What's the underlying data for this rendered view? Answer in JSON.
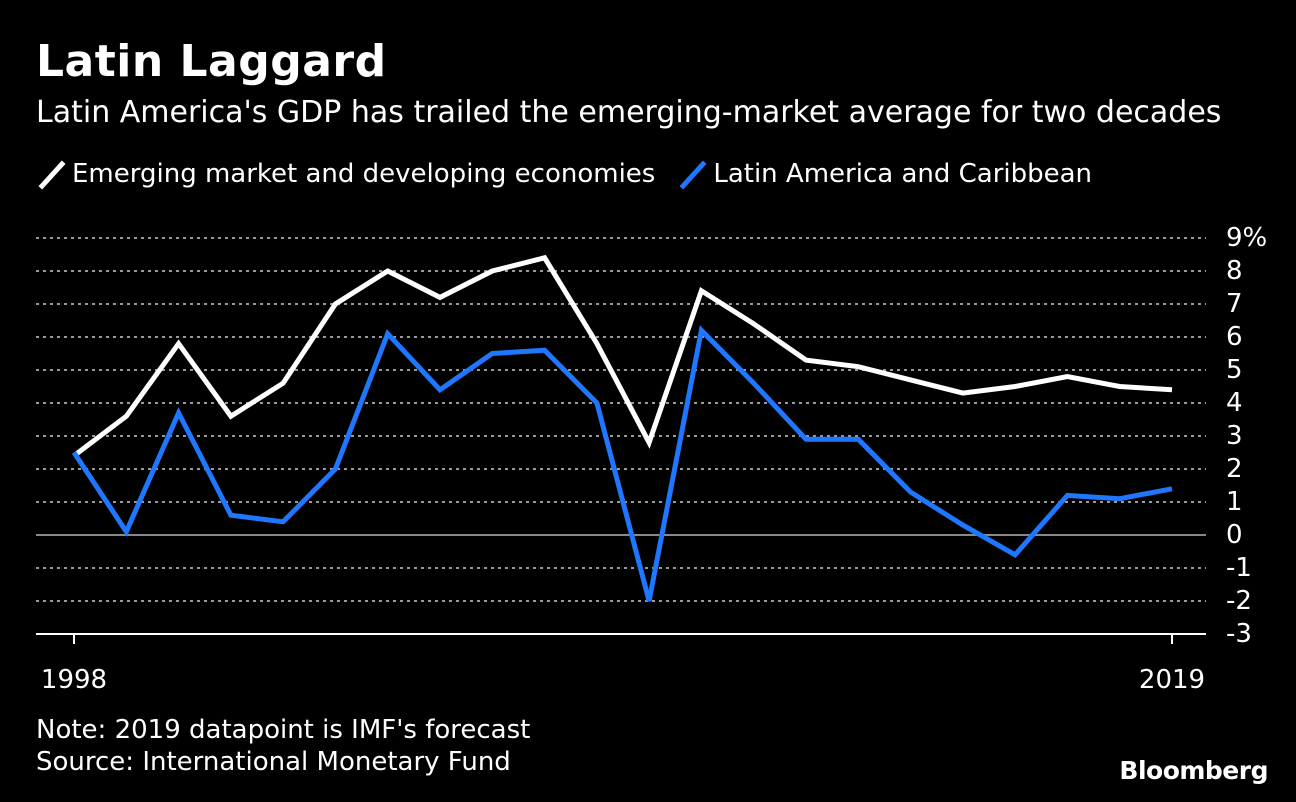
{
  "header": {
    "title": "Latin Laggard",
    "subtitle": "Latin America's GDP has trailed the emerging-market average for two decades"
  },
  "legend": [
    {
      "label": "Emerging market and developing economies",
      "color": "#ffffff"
    },
    {
      "label": "Latin America and Caribbean",
      "color": "#1f77ff"
    }
  ],
  "chart_data": {
    "type": "line",
    "x": [
      1998,
      1999,
      2000,
      2001,
      2002,
      2003,
      2004,
      2005,
      2006,
      2007,
      2008,
      2009,
      2010,
      2011,
      2012,
      2013,
      2014,
      2015,
      2016,
      2017,
      2018,
      2019
    ],
    "x_tick_labels": [
      "1998",
      "2019"
    ],
    "series": [
      {
        "name": "Emerging market and developing economies",
        "color": "#ffffff",
        "values": [
          2.4,
          3.6,
          5.8,
          3.6,
          4.6,
          7.0,
          8.0,
          7.2,
          8.0,
          8.4,
          5.8,
          2.8,
          7.4,
          6.4,
          5.3,
          5.1,
          4.7,
          4.3,
          4.5,
          4.8,
          4.5,
          4.4
        ]
      },
      {
        "name": "Latin America and Caribbean",
        "color": "#1f77ff",
        "values": [
          2.5,
          0.1,
          3.7,
          0.6,
          0.4,
          2.0,
          6.1,
          4.4,
          5.5,
          5.6,
          4.0,
          -2.0,
          6.2,
          4.6,
          2.9,
          2.9,
          1.3,
          0.3,
          -0.6,
          1.2,
          1.1,
          1.4
        ]
      }
    ],
    "y_ticks": [
      9,
      8,
      7,
      6,
      5,
      4,
      3,
      2,
      1,
      0,
      -1,
      -2,
      -3
    ],
    "y_tick_labels": [
      "9%",
      "8",
      "7",
      "6",
      "5",
      "4",
      "3",
      "2",
      "1",
      "0",
      "-1",
      "-2",
      "-3"
    ],
    "ylim": [
      -3,
      9
    ],
    "xlim": [
      1998,
      2019
    ],
    "grid": true,
    "axis_color": "#ffffff",
    "grid_color": "#9a9a9a",
    "zero_line_color": "#888888"
  },
  "footer": {
    "note": "Note: 2019 datapoint is IMF's forecast",
    "source": "Source: International Monetary Fund",
    "brand": "Bloomberg"
  }
}
